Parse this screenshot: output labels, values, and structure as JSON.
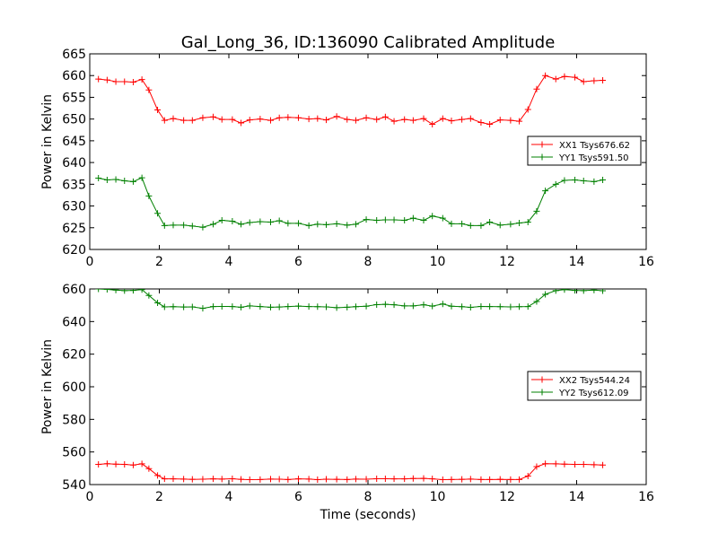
{
  "chart_data": [
    {
      "type": "line",
      "title": "Gal_Long_36, ID:136090 Calibrated Amplitude",
      "xlabel": "",
      "ylabel": "Power in Kelvin",
      "xlim": [
        0,
        16
      ],
      "ylim": [
        620,
        665
      ],
      "xticks": [
        0,
        2,
        4,
        6,
        8,
        10,
        12,
        14,
        16
      ],
      "yticks": [
        620,
        625,
        630,
        635,
        640,
        645,
        650,
        655,
        660,
        665
      ],
      "grid": false,
      "legend_position": "center-right",
      "series": [
        {
          "name": "XX1 Tsys676.62",
          "color": "#ff0000",
          "x": [
            0.25,
            0.5,
            0.75,
            1.0,
            1.25,
            1.5,
            1.7,
            1.95,
            2.15,
            2.4,
            2.7,
            2.95,
            3.25,
            3.55,
            3.8,
            4.1,
            4.35,
            4.6,
            4.9,
            5.2,
            5.45,
            5.7,
            6.0,
            6.3,
            6.55,
            6.8,
            7.1,
            7.4,
            7.65,
            7.95,
            8.25,
            8.5,
            8.75,
            9.05,
            9.3,
            9.6,
            9.85,
            10.15,
            10.4,
            10.7,
            10.95,
            11.25,
            11.5,
            11.8,
            12.1,
            12.35,
            12.6,
            12.85,
            13.1,
            13.4,
            13.65,
            13.95,
            14.2,
            14.5,
            14.75
          ],
          "y": [
            659.2,
            659.0,
            658.6,
            658.6,
            658.5,
            659.1,
            656.7,
            652.1,
            649.7,
            650.1,
            649.7,
            649.7,
            650.3,
            650.5,
            649.9,
            649.9,
            649.1,
            649.8,
            650.0,
            649.7,
            650.3,
            650.4,
            650.3,
            650.0,
            650.1,
            649.8,
            650.6,
            649.9,
            649.7,
            650.3,
            649.9,
            650.5,
            649.5,
            649.9,
            649.7,
            650.1,
            648.8,
            650.1,
            649.6,
            649.9,
            650.1,
            649.2,
            648.8,
            649.8,
            649.7,
            649.5,
            652.2,
            656.9,
            660.0,
            659.2,
            659.8,
            659.6,
            658.6,
            658.8,
            658.9
          ]
        },
        {
          "name": "YY1 Tsys591.50",
          "color": "#008000",
          "x": [
            0.25,
            0.5,
            0.75,
            1.0,
            1.25,
            1.5,
            1.7,
            1.95,
            2.15,
            2.4,
            2.7,
            2.95,
            3.25,
            3.55,
            3.8,
            4.1,
            4.35,
            4.6,
            4.9,
            5.2,
            5.45,
            5.7,
            6.0,
            6.3,
            6.55,
            6.8,
            7.1,
            7.4,
            7.65,
            7.95,
            8.25,
            8.5,
            8.75,
            9.05,
            9.3,
            9.6,
            9.85,
            10.15,
            10.4,
            10.7,
            10.95,
            11.25,
            11.5,
            11.8,
            12.1,
            12.35,
            12.6,
            12.85,
            13.1,
            13.4,
            13.65,
            13.95,
            14.2,
            14.5,
            14.75
          ],
          "y": [
            636.4,
            636.0,
            636.1,
            635.8,
            635.6,
            636.5,
            632.3,
            628.3,
            625.5,
            625.6,
            625.6,
            625.4,
            625.1,
            625.8,
            626.7,
            626.5,
            625.8,
            626.2,
            626.4,
            626.3,
            626.6,
            626.0,
            626.0,
            625.5,
            625.8,
            625.7,
            625.9,
            625.6,
            625.8,
            626.9,
            626.7,
            626.8,
            626.8,
            626.7,
            627.2,
            626.7,
            627.7,
            627.2,
            625.9,
            625.9,
            625.5,
            625.5,
            626.3,
            625.6,
            625.8,
            626.1,
            626.3,
            628.8,
            633.5,
            635.0,
            635.9,
            636.0,
            635.8,
            635.6,
            636.0
          ]
        }
      ]
    },
    {
      "type": "line",
      "title": "",
      "xlabel": "Time (seconds)",
      "ylabel": "Power in Kelvin",
      "xlim": [
        0,
        16
      ],
      "ylim": [
        540,
        660
      ],
      "xticks": [
        0,
        2,
        4,
        6,
        8,
        10,
        12,
        14,
        16
      ],
      "yticks": [
        540,
        560,
        580,
        600,
        620,
        640,
        660
      ],
      "grid": false,
      "legend_position": "center-right",
      "series": [
        {
          "name": "XX2 Tsys544.24",
          "color": "#ff0000",
          "x": [
            0.25,
            0.5,
            0.75,
            1.0,
            1.25,
            1.5,
            1.7,
            1.95,
            2.15,
            2.4,
            2.7,
            2.95,
            3.25,
            3.55,
            3.8,
            4.1,
            4.35,
            4.6,
            4.9,
            5.2,
            5.45,
            5.7,
            6.0,
            6.3,
            6.55,
            6.8,
            7.1,
            7.4,
            7.65,
            7.95,
            8.25,
            8.5,
            8.75,
            9.05,
            9.3,
            9.6,
            9.85,
            10.15,
            10.4,
            10.7,
            10.95,
            11.25,
            11.5,
            11.8,
            12.1,
            12.35,
            12.6,
            12.85,
            13.1,
            13.4,
            13.65,
            13.95,
            14.2,
            14.5,
            14.75
          ],
          "y": [
            552.4,
            552.8,
            552.5,
            552.4,
            552.0,
            552.7,
            549.8,
            545.6,
            543.5,
            543.5,
            543.4,
            543.2,
            543.3,
            543.5,
            543.4,
            543.6,
            543.2,
            543.0,
            543.1,
            543.4,
            543.3,
            543.1,
            543.5,
            543.4,
            543.0,
            543.3,
            543.2,
            543.1,
            543.4,
            543.3,
            543.6,
            543.6,
            543.5,
            543.5,
            543.7,
            543.8,
            543.5,
            543.0,
            543.1,
            543.2,
            543.4,
            543.1,
            543.1,
            543.2,
            543.1,
            543.1,
            545.2,
            551.0,
            552.8,
            552.7,
            552.5,
            552.4,
            552.4,
            552.2,
            552.0
          ]
        },
        {
          "name": "YY2 Tsys612.09",
          "color": "#008000",
          "x": [
            0.25,
            0.5,
            0.75,
            1.0,
            1.25,
            1.5,
            1.7,
            1.95,
            2.15,
            2.4,
            2.7,
            2.95,
            3.25,
            3.55,
            3.8,
            4.1,
            4.35,
            4.6,
            4.9,
            5.2,
            5.45,
            5.7,
            6.0,
            6.3,
            6.55,
            6.8,
            7.1,
            7.4,
            7.65,
            7.95,
            8.25,
            8.5,
            8.75,
            9.05,
            9.3,
            9.6,
            9.85,
            10.15,
            10.4,
            10.7,
            10.95,
            11.25,
            11.5,
            11.8,
            12.1,
            12.35,
            12.6,
            12.85,
            13.1,
            13.4,
            13.65,
            13.95,
            14.2,
            14.5,
            14.75
          ],
          "y": [
            660.0,
            659.7,
            659.3,
            659.0,
            659.1,
            659.6,
            656.0,
            651.5,
            649.0,
            649.1,
            648.9,
            649.0,
            648.1,
            649.2,
            649.3,
            649.2,
            648.8,
            649.6,
            649.2,
            648.8,
            648.9,
            649.2,
            649.5,
            649.2,
            649.1,
            649.0,
            648.5,
            648.8,
            649.1,
            649.4,
            650.4,
            650.6,
            650.3,
            649.6,
            649.6,
            650.3,
            649.5,
            650.8,
            649.4,
            649.1,
            648.7,
            649.3,
            649.2,
            649.1,
            649.0,
            649.1,
            649.2,
            652.3,
            656.7,
            659.0,
            659.6,
            659.1,
            659.0,
            659.3,
            658.9
          ]
        }
      ]
    }
  ]
}
